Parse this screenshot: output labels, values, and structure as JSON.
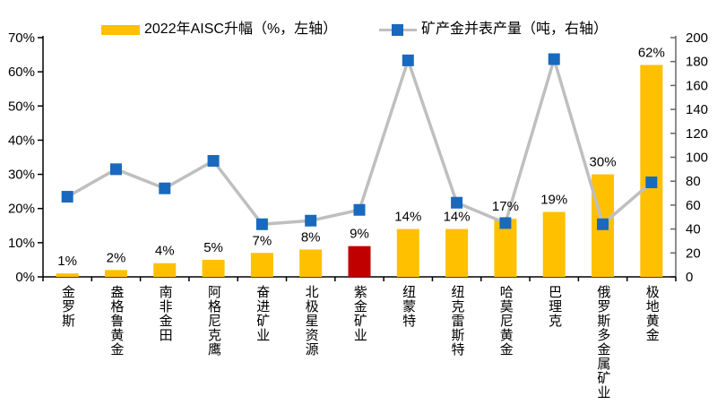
{
  "chart_data": {
    "type": "combo (bar + line)",
    "title": "",
    "categories": [
      "金罗斯",
      "盎格鲁黄金",
      "南非金田",
      "阿格尼克鹰",
      "奋进矿业",
      "北极星资源",
      "紫金矿业",
      "纽蒙特",
      "纽克雷斯特",
      "哈莫尼黄金",
      "巴理克",
      "俄罗斯多金属矿业",
      "极地黄金"
    ],
    "series": [
      {
        "name": "2022年AISC升幅（%，左轴）",
        "type": "bar",
        "axis": "left",
        "unit": "%",
        "values": [
          1,
          2,
          4,
          5,
          7,
          8,
          9,
          14,
          14,
          17,
          19,
          30,
          62
        ],
        "data_labels": [
          "1%",
          "2%",
          "4%",
          "5%",
          "7%",
          "8%",
          "9%",
          "14%",
          "14%",
          "17%",
          "19%",
          "30%",
          "62%"
        ],
        "color": "#FFC000",
        "highlight_index": 6,
        "highlight_color": "#C00000"
      },
      {
        "name": "矿产金并表产量（吨，右轴）",
        "type": "line",
        "axis": "right",
        "unit": "吨",
        "values": [
          67,
          90,
          74,
          97,
          44,
          47,
          56,
          181,
          62,
          45,
          182,
          44,
          79
        ],
        "line_color": "#BFBFBF",
        "marker_color": "#1969BE",
        "marker_shape": "square"
      }
    ],
    "left_axis": {
      "min": 0,
      "max": 70,
      "tick_step": 10,
      "tick_labels": [
        "0%",
        "10%",
        "20%",
        "30%",
        "40%",
        "50%",
        "60%",
        "70%"
      ]
    },
    "right_axis": {
      "min": 0,
      "max": 200,
      "tick_step": 20,
      "tick_labels": [
        "0",
        "20",
        "40",
        "60",
        "80",
        "100",
        "120",
        "140",
        "160",
        "180",
        "200"
      ]
    },
    "legend_position": "top",
    "grid": false,
    "colors": {
      "axis_left": "#000000",
      "axis_bottom": "#000000",
      "axis_right": "#666666",
      "text": "#000000",
      "background": "#FFFFFF"
    }
  }
}
